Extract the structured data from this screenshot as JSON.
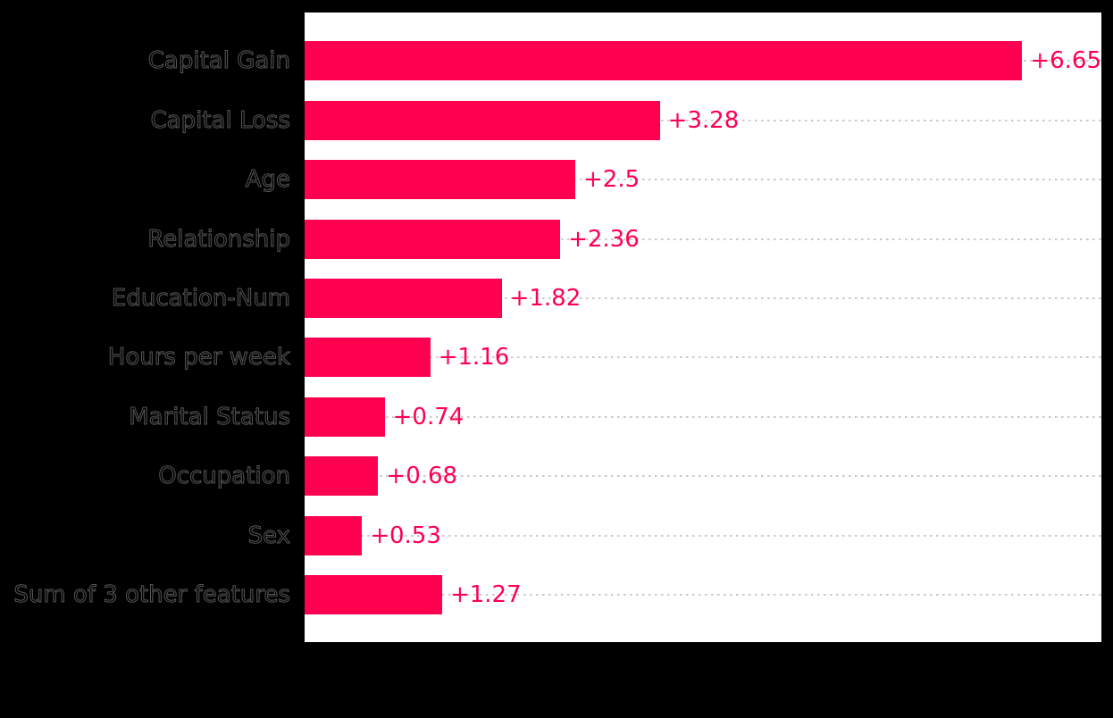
{
  "figure": {
    "background_color": "#000000",
    "plot_background_color": "#ffffff",
    "bar_color": "#ff0051",
    "value_label_color": "#ff0051",
    "gridline_color": "#c9c9c9",
    "tick_label_fill_color": "#000000",
    "tick_label_outline_color": "#575757"
  },
  "chart_data": {
    "type": "bar",
    "orientation": "horizontal",
    "title": "",
    "xlabel": "",
    "ylabel": "",
    "categories": [
      "Capital Gain",
      "Capital Loss",
      "Age",
      "Relationship",
      "Education-Num",
      "Hours per week",
      "Marital Status",
      "Occupation",
      "Sex",
      "Sum of 3 other features"
    ],
    "values": [
      6.65,
      3.28,
      2.5,
      2.36,
      1.82,
      1.16,
      0.74,
      0.68,
      0.53,
      1.27
    ],
    "value_labels": [
      "+6.65",
      "+3.28",
      "+2.5",
      "+2.36",
      "+1.82",
      "+1.16",
      "+0.74",
      "+0.68",
      "+0.53",
      "+1.27"
    ],
    "xlim": [
      0,
      7.36
    ],
    "grid": "dotted horizontal line at each bar row, behind bars",
    "legend": "none"
  }
}
